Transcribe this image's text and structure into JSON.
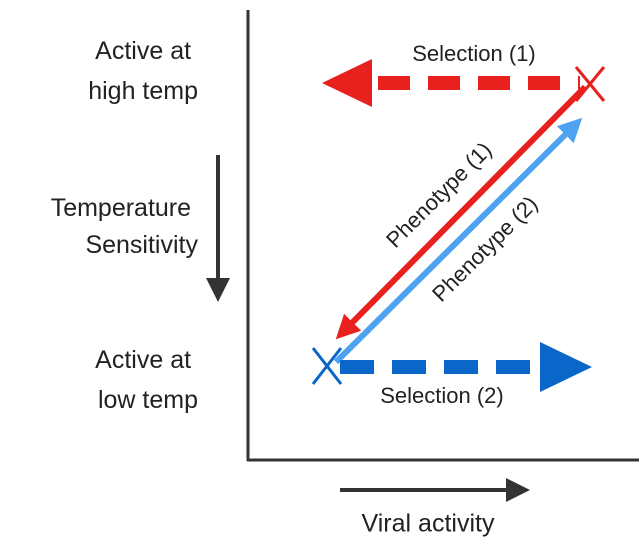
{
  "y_axis": {
    "top_label": [
      "Active at",
      "high temp"
    ],
    "middle_label": [
      "Temperature",
      "Sensitivity"
    ],
    "bottom_label": [
      "Active at",
      "low temp"
    ]
  },
  "x_axis": {
    "label": "Viral activity"
  },
  "arrows": {
    "selection_1": "Selection (1)",
    "selection_2": "Selection (2)",
    "phenotype_1": "Phenotype (1)",
    "phenotype_2": "Phenotype (2)"
  }
}
